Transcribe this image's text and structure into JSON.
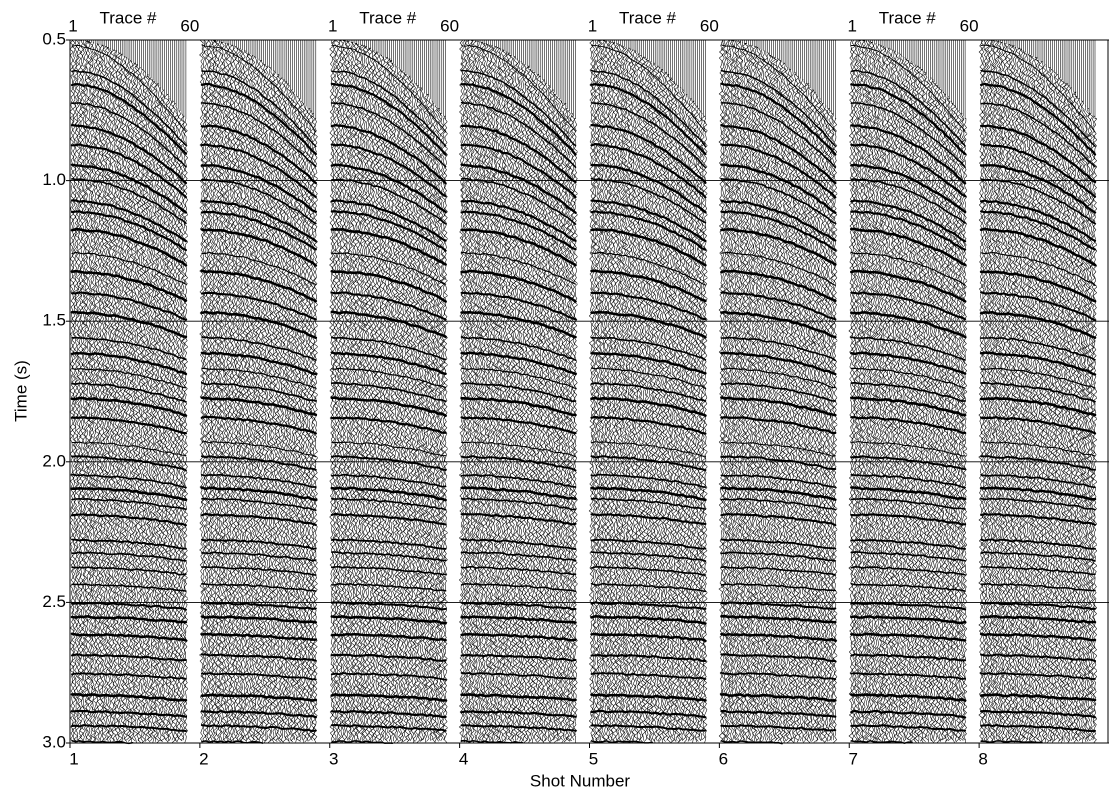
{
  "chart_data": {
    "type": "seismic",
    "x_label": "Shot Number",
    "y_label": "Time (s)",
    "categories": [
      "1",
      "2",
      "3",
      "4",
      "5",
      "6",
      "7",
      "8"
    ],
    "ylim": [
      0.5,
      3.0
    ],
    "yticks": [
      0.5,
      {
        "value": 1,
        "label": "1.0"
      },
      1.5,
      {
        "value": 2,
        "label": "2.0"
      },
      2.5,
      {
        "value": 3,
        "label": "3.0"
      }
    ],
    "grid": true,
    "trace_annotations": [
      {
        "shot": "1",
        "first": "1",
        "title": "Trace #",
        "last": "60"
      },
      {
        "shot": "3",
        "first": "1",
        "title": "Trace #",
        "last": "60"
      },
      {
        "shot": "5",
        "first": "1",
        "title": "Trace #",
        "last": "60"
      },
      {
        "shot": "7",
        "first": "1",
        "title": "Trace #",
        "last": "60"
      }
    ]
  }
}
